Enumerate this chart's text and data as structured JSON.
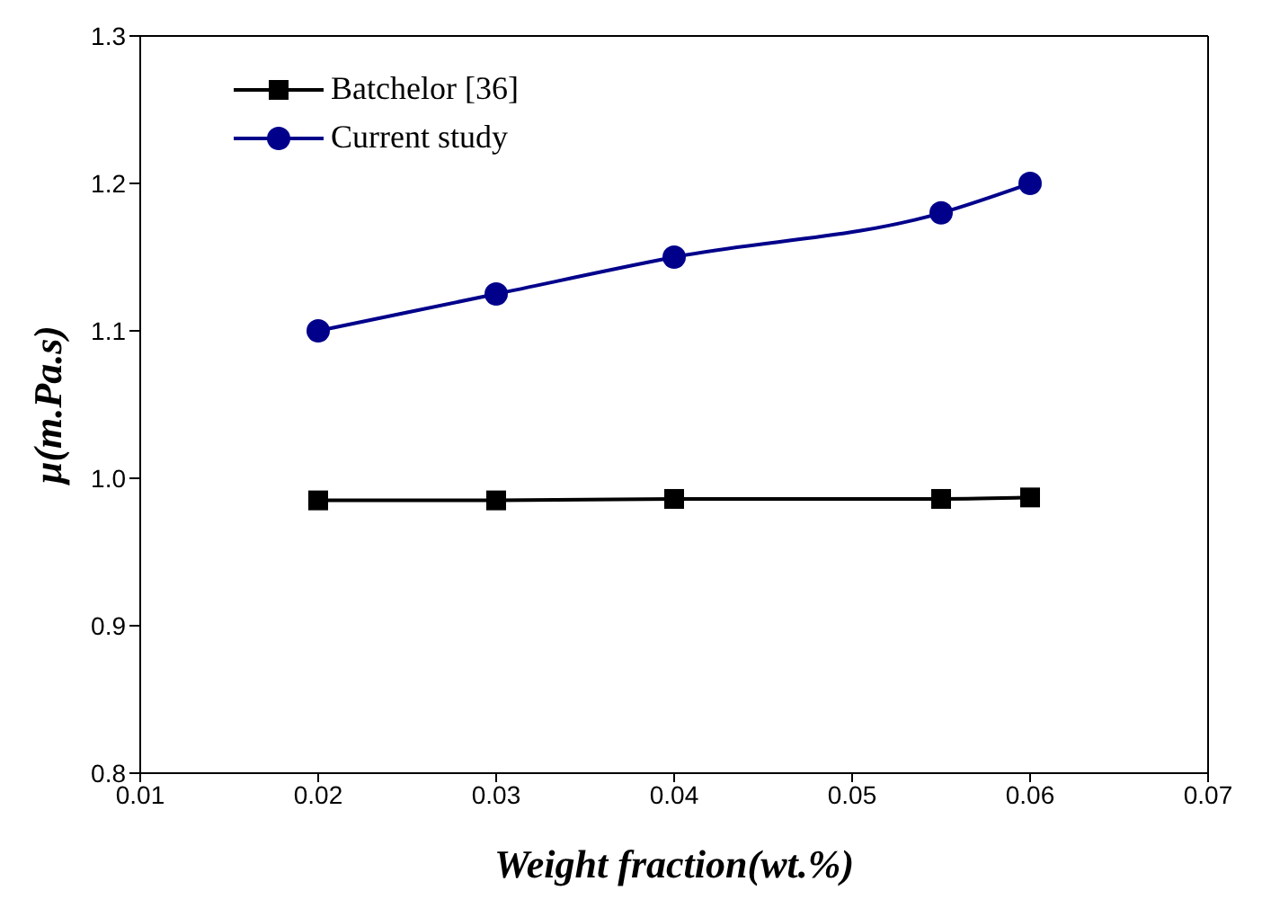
{
  "chart_data": {
    "type": "line",
    "xlabel": "Weight fraction(wt.%)",
    "ylabel": "μ(m.Pa.s)",
    "xlim": [
      0.01,
      0.07
    ],
    "xticks": [
      0.01,
      0.02,
      0.03,
      0.04,
      0.05,
      0.06,
      0.07
    ],
    "ylim": [
      0.8,
      1.3
    ],
    "yticks": [
      0.8,
      0.9,
      {
        "value": 1,
        "label": "1.0"
      },
      1.1,
      1.2,
      1.3
    ],
    "x": [
      0.02,
      0.03,
      0.04,
      0.055,
      0.06
    ],
    "series": [
      {
        "name": "Batchelor [36]",
        "color": "#000000",
        "marker": "square",
        "values": [
          0.985,
          0.985,
          0.986,
          0.986,
          0.987
        ]
      },
      {
        "name": "Current study",
        "color": "#00008b",
        "marker": "circle",
        "values": [
          1.1,
          1.125,
          1.15,
          1.18,
          1.2
        ]
      }
    ],
    "legend": "top left",
    "line_style": "solid"
  }
}
